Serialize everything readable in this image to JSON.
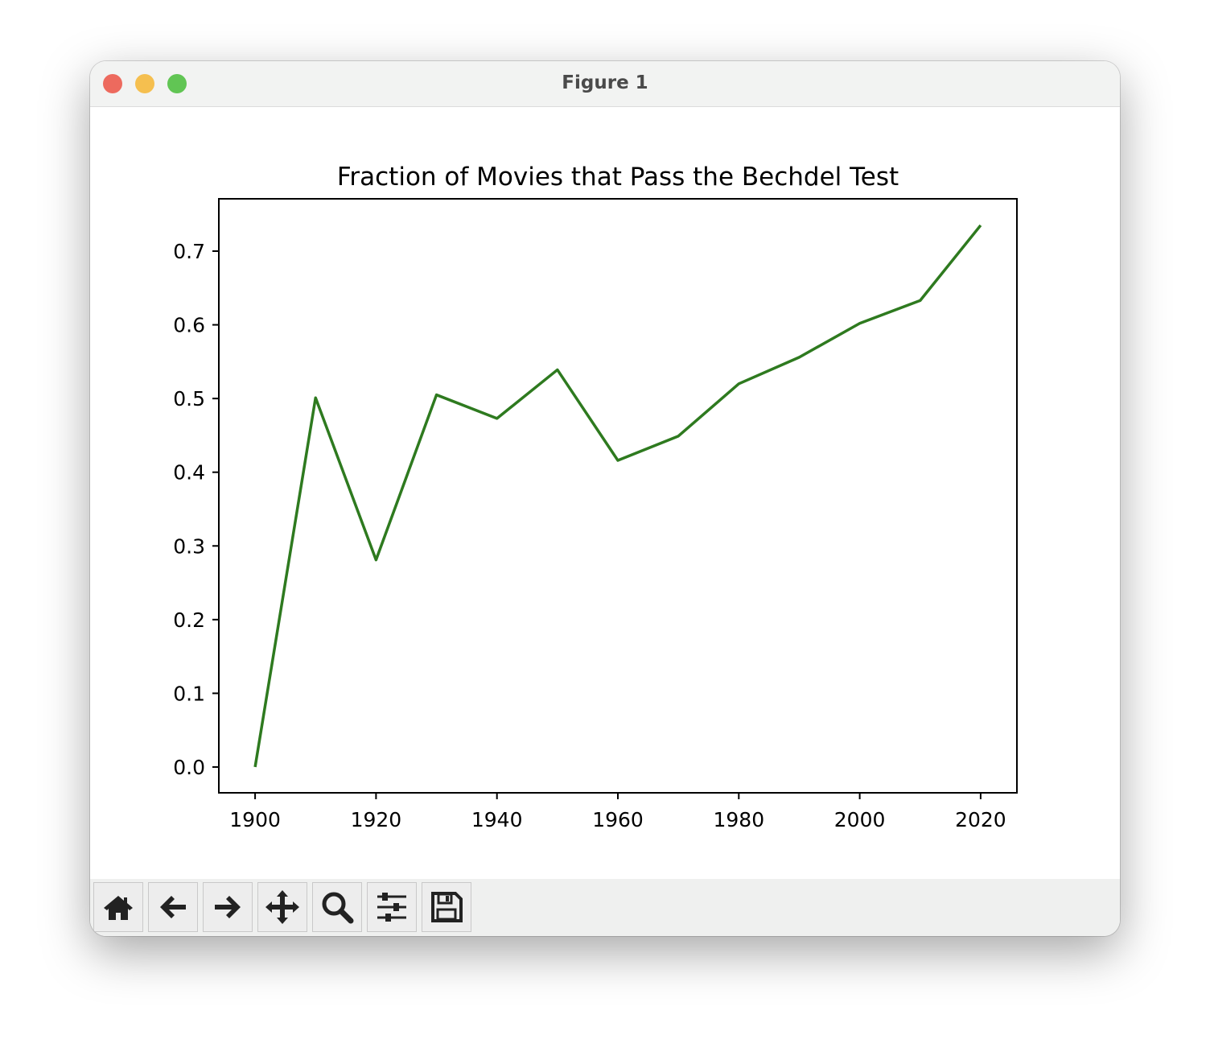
{
  "window": {
    "title": "Figure 1"
  },
  "toolbar": {
    "buttons": [
      {
        "icon": "home-icon",
        "label": "Home"
      },
      {
        "icon": "back-arrow-icon",
        "label": "Back"
      },
      {
        "icon": "forward-arrow-icon",
        "label": "Forward"
      },
      {
        "icon": "move-icon",
        "label": "Pan"
      },
      {
        "icon": "zoom-icon",
        "label": "Zoom"
      },
      {
        "icon": "sliders-icon",
        "label": "Configure subplots"
      },
      {
        "icon": "save-icon",
        "label": "Save"
      }
    ]
  },
  "chart_data": {
    "type": "line",
    "title": "Fraction of Movies that Pass the Bechdel Test",
    "xlabel": "",
    "ylabel": "",
    "x": [
      1900,
      1910,
      1920,
      1930,
      1940,
      1950,
      1960,
      1970,
      1980,
      1990,
      2000,
      2010,
      2020
    ],
    "series": [
      {
        "values": [
          0.0,
          0.501,
          0.281,
          0.505,
          0.473,
          0.539,
          0.416,
          0.449,
          0.52,
          0.556,
          0.602,
          0.633,
          0.735
        ],
        "color": "#2e7a1f"
      }
    ],
    "xlim": [
      1894,
      2026
    ],
    "ylim": [
      -0.035,
      0.771
    ],
    "xticks": [
      "1900",
      "1920",
      "1940",
      "1960",
      "1980",
      "2000",
      "2020"
    ],
    "yticks": [
      "0.0",
      "0.1",
      "0.2",
      "0.3",
      "0.4",
      "0.5",
      "0.6",
      "0.7"
    ],
    "grid": false,
    "legend": "none"
  }
}
